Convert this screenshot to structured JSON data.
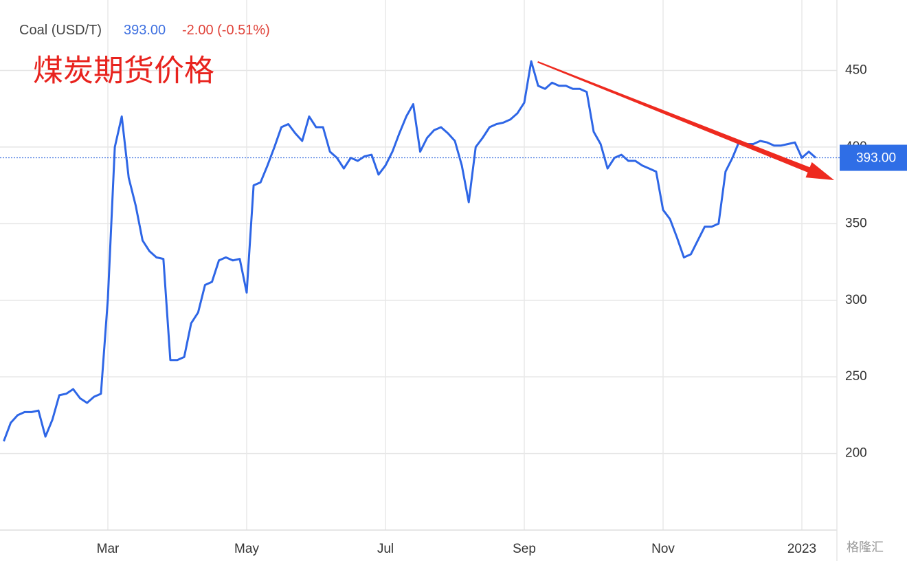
{
  "chart_data": {
    "type": "line",
    "instrument": "Coal (USD/T)",
    "last_price": {
      "value": 393,
      "label": "393.00"
    },
    "change": "-2.00 (-0.51%)",
    "annotation": "煤炭期货价格",
    "watermark": "格隆汇",
    "categories": [
      null,
      null,
      null,
      null,
      null,
      null,
      null,
      null,
      null,
      null,
      null,
      null,
      null,
      null,
      null,
      "Mar",
      null,
      null,
      null,
      null,
      null,
      null,
      null,
      null,
      null,
      null,
      null,
      null,
      null,
      null,
      null,
      null,
      null,
      null,
      null,
      "May",
      null,
      null,
      null,
      null,
      null,
      null,
      null,
      null,
      null,
      null,
      null,
      null,
      null,
      null,
      null,
      null,
      null,
      null,
      null,
      "Jul",
      null,
      null,
      null,
      null,
      null,
      null,
      null,
      null,
      null,
      null,
      null,
      null,
      null,
      null,
      null,
      null,
      null,
      null,
      null,
      "Sep",
      null,
      null,
      null,
      null,
      null,
      null,
      null,
      null,
      null,
      null,
      null,
      null,
      null,
      null,
      null,
      null,
      null,
      null,
      null,
      "Nov",
      null,
      null,
      null,
      null,
      null,
      null,
      null,
      null,
      null,
      null,
      null,
      null,
      null,
      null,
      null,
      null,
      null,
      null,
      null,
      "2023",
      null,
      null
    ],
    "values": [
      208,
      220,
      225,
      227,
      227,
      228,
      211,
      222,
      238,
      239,
      242,
      236,
      233,
      237,
      239,
      301,
      400,
      420,
      380,
      362,
      339,
      332,
      328,
      327,
      261,
      261,
      263,
      285,
      292,
      310,
      312,
      326,
      328,
      326,
      327,
      305,
      375,
      377,
      388,
      400,
      413,
      415,
      409,
      404,
      420,
      413,
      413,
      397,
      393,
      386,
      393,
      391,
      394,
      395,
      382,
      388,
      397,
      409,
      420,
      428,
      397,
      406,
      411,
      413,
      409,
      404,
      388,
      364,
      400,
      406,
      413,
      415,
      416,
      418,
      422,
      429,
      456,
      440,
      438,
      442,
      440,
      440,
      438,
      438,
      436,
      410,
      402,
      386,
      393,
      395,
      391,
      391,
      388,
      386,
      384,
      359,
      353,
      341,
      328,
      330,
      339,
      348,
      348,
      350,
      384,
      393,
      404,
      402,
      402,
      404,
      403,
      401,
      401,
      402,
      403,
      393,
      397,
      393
    ],
    "color": "#2e66e6",
    "ylim": [
      150,
      496
    ],
    "yticks": [
      200,
      250,
      300,
      350,
      400,
      450
    ],
    "grid": true
  }
}
